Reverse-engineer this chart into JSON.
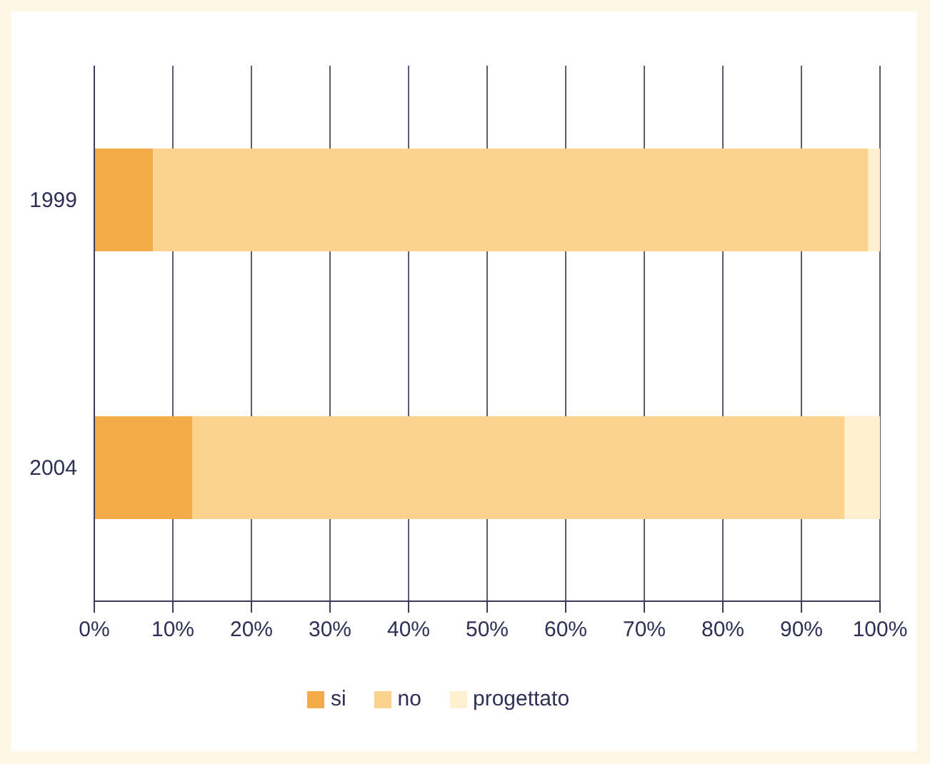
{
  "chart_data": {
    "type": "bar",
    "orientation": "horizontal",
    "stacked": true,
    "categories": [
      "1999",
      "2004"
    ],
    "series": [
      {
        "name": "si",
        "color": "#f4ac4a",
        "values": [
          7.5,
          12.5
        ]
      },
      {
        "name": "no",
        "color": "#fbd28e",
        "values": [
          91,
          83
        ]
      },
      {
        "name": "progettato",
        "color": "#fdf0cf",
        "values": [
          1.5,
          4.5
        ]
      }
    ],
    "xlim": [
      0,
      100
    ],
    "xticks": [
      {
        "value": 0,
        "label": "0%"
      },
      {
        "value": 10,
        "label": "10%"
      },
      {
        "value": 20,
        "label": "20%"
      },
      {
        "value": 30,
        "label": "30%"
      },
      {
        "value": 40,
        "label": "40%"
      },
      {
        "value": 50,
        "label": "50%"
      },
      {
        "value": 60,
        "label": "60%"
      },
      {
        "value": 70,
        "label": "70%"
      },
      {
        "value": 80,
        "label": "80%"
      },
      {
        "value": 90,
        "label": "90%"
      },
      {
        "value": 100,
        "label": "100%"
      }
    ],
    "grid": "x",
    "legend": "bottom"
  }
}
